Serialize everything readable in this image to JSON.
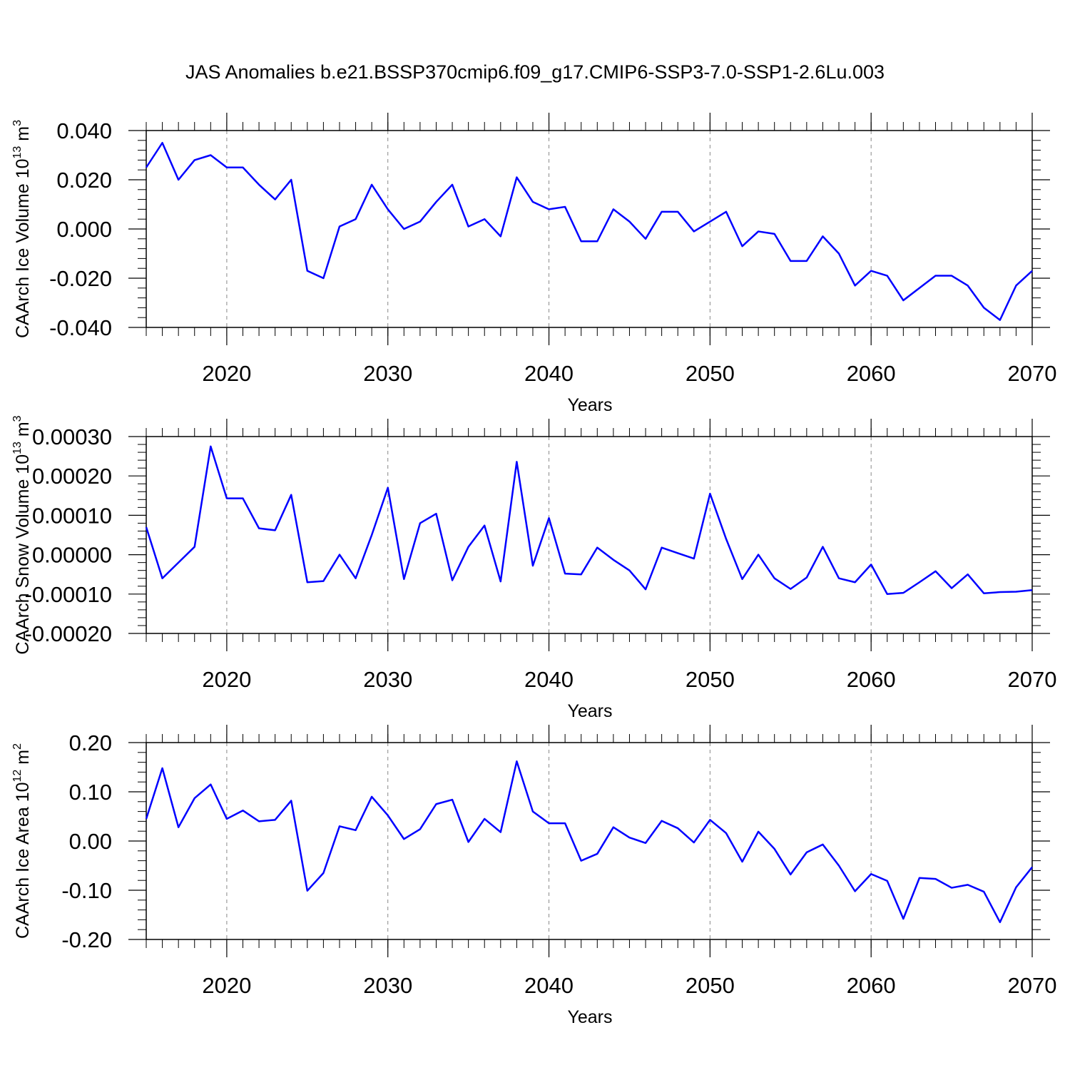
{
  "title": "JAS Anomalies b.e21.BSSP370cmip6.f09_g17.CMIP6-SSP3-7.0-SSP1-2.6Lu.003",
  "chart_data": [
    {
      "type": "line",
      "ylabel": [
        "CAArch Ice Volume 10",
        "13",
        " m",
        "3"
      ],
      "xlabel": "Years",
      "x": [
        2015,
        2016,
        2017,
        2018,
        2019,
        2020,
        2021,
        2022,
        2023,
        2024,
        2025,
        2026,
        2027,
        2028,
        2029,
        2030,
        2031,
        2032,
        2033,
        2034,
        2035,
        2036,
        2037,
        2038,
        2039,
        2040,
        2041,
        2042,
        2043,
        2044,
        2045,
        2046,
        2047,
        2048,
        2049,
        2050,
        2051,
        2052,
        2053,
        2054,
        2055,
        2056,
        2057,
        2058,
        2059,
        2060,
        2061,
        2062,
        2063,
        2064,
        2065,
        2066,
        2067,
        2068,
        2069,
        2070
      ],
      "series": [
        {
          "color": "#0000ff",
          "values": [
            0.025,
            0.035,
            0.02,
            0.028,
            0.03,
            0.025,
            0.025,
            0.018,
            0.012,
            0.02,
            -0.017,
            -0.02,
            0.001,
            0.004,
            0.018,
            0.008,
            0.0,
            0.003,
            0.011,
            0.018,
            0.001,
            0.004,
            -0.003,
            0.021,
            0.011,
            0.008,
            0.009,
            -0.005,
            -0.005,
            0.008,
            0.003,
            -0.004,
            0.007,
            0.007,
            -0.001,
            0.003,
            0.007,
            -0.007,
            -0.001,
            -0.002,
            -0.013,
            -0.013,
            -0.003,
            -0.01,
            -0.023,
            -0.017,
            -0.019,
            -0.029,
            -0.024,
            -0.019,
            -0.019,
            -0.023,
            -0.032,
            -0.037,
            -0.023,
            -0.017
          ]
        }
      ],
      "xlim": [
        2015,
        2070
      ],
      "xticks": [
        2020,
        2030,
        2040,
        2050,
        2060,
        2070
      ],
      "ylim": [
        -0.04,
        0.04
      ],
      "yticks": [
        {
          "value": -0.04,
          "label": "-0.040"
        },
        {
          "value": -0.02,
          "label": "-0.020"
        },
        {
          "value": 0,
          "label": "0.000"
        },
        {
          "value": 0.02,
          "label": "0.020"
        },
        {
          "value": 0.04,
          "label": "0.040"
        }
      ],
      "grid": true
    },
    {
      "type": "line",
      "ylabel": [
        "CAArch Snow Volume 10",
        "13",
        " m",
        "3"
      ],
      "xlabel": "Years",
      "x": [
        2015,
        2016,
        2017,
        2018,
        2019,
        2020,
        2021,
        2022,
        2023,
        2024,
        2025,
        2026,
        2027,
        2028,
        2029,
        2030,
        2031,
        2032,
        2033,
        2034,
        2035,
        2036,
        2037,
        2038,
        2039,
        2040,
        2041,
        2042,
        2043,
        2044,
        2045,
        2046,
        2047,
        2048,
        2049,
        2050,
        2051,
        2052,
        2053,
        2054,
        2055,
        2056,
        2057,
        2058,
        2059,
        2060,
        2061,
        2062,
        2063,
        2064,
        2065,
        2066,
        2067,
        2068,
        2069,
        2070
      ],
      "series": [
        {
          "color": "#0000ff",
          "values": [
            7e-05,
            -6e-05,
            -2e-05,
            2e-05,
            0.000275,
            0.000143,
            0.000143,
            6.7e-05,
            6.2e-05,
            0.000152,
            -7e-05,
            -6.7e-05,
            0.0,
            -6e-05,
            5e-05,
            0.00017,
            -6.2e-05,
            8e-05,
            0.000104,
            -6.5e-05,
            2e-05,
            7.4e-05,
            -6.8e-05,
            0.000236,
            -2.8e-05,
            9.3e-05,
            -4.8e-05,
            -5e-05,
            1.8e-05,
            -1.3e-05,
            -4e-05,
            -8.8e-05,
            1.8e-05,
            4e-06,
            -1e-05,
            0.000155,
            4e-05,
            -6.2e-05,
            0.0,
            -6e-05,
            -8.7e-05,
            -5.8e-05,
            2e-05,
            -6e-05,
            -7e-05,
            -2.5e-05,
            -0.0001,
            -9.7e-05,
            -7e-05,
            -4.2e-05,
            -8.5e-05,
            -5e-05,
            -9.8e-05,
            -9.5e-05,
            -9.4e-05,
            -9e-05
          ]
        }
      ],
      "xlim": [
        2015,
        2070
      ],
      "xticks": [
        2020,
        2030,
        2040,
        2050,
        2060,
        2070
      ],
      "ylim": [
        -0.0002,
        0.0003
      ],
      "yticks": [
        {
          "value": -0.0002,
          "label": "-0.00020"
        },
        {
          "value": -0.0001,
          "label": "-0.00010"
        },
        {
          "value": 0,
          "label": "0.00000"
        },
        {
          "value": 0.0001,
          "label": "0.00010"
        },
        {
          "value": 0.0002,
          "label": "0.00020"
        },
        {
          "value": 0.0003,
          "label": "0.00030"
        }
      ],
      "grid": true
    },
    {
      "type": "line",
      "ylabel": [
        "CAArch Ice Area 10",
        "12",
        " m",
        "2"
      ],
      "xlabel": "Years",
      "x": [
        2015,
        2016,
        2017,
        2018,
        2019,
        2020,
        2021,
        2022,
        2023,
        2024,
        2025,
        2026,
        2027,
        2028,
        2029,
        2030,
        2031,
        2032,
        2033,
        2034,
        2035,
        2036,
        2037,
        2038,
        2039,
        2040,
        2041,
        2042,
        2043,
        2044,
        2045,
        2046,
        2047,
        2048,
        2049,
        2050,
        2051,
        2052,
        2053,
        2054,
        2055,
        2056,
        2057,
        2058,
        2059,
        2060,
        2061,
        2062,
        2063,
        2064,
        2065,
        2066,
        2067,
        2068,
        2069,
        2070
      ],
      "series": [
        {
          "color": "#0000ff",
          "values": [
            0.045,
            0.148,
            0.028,
            0.087,
            0.115,
            0.045,
            0.062,
            0.04,
            0.043,
            0.082,
            -0.101,
            -0.065,
            0.03,
            0.022,
            0.09,
            0.052,
            0.004,
            0.024,
            0.075,
            0.084,
            -0.002,
            0.045,
            0.018,
            0.162,
            0.06,
            0.036,
            0.036,
            -0.04,
            -0.026,
            0.028,
            0.007,
            -0.004,
            0.041,
            0.026,
            -0.003,
            0.043,
            0.016,
            -0.042,
            0.019,
            -0.016,
            -0.068,
            -0.023,
            -0.007,
            -0.05,
            -0.102,
            -0.067,
            -0.081,
            -0.158,
            -0.075,
            -0.077,
            -0.095,
            -0.089,
            -0.103,
            -0.165,
            -0.094,
            -0.053
          ]
        }
      ],
      "xlim": [
        2015,
        2070
      ],
      "xticks": [
        2020,
        2030,
        2040,
        2050,
        2060,
        2070
      ],
      "ylim": [
        -0.2,
        0.2
      ],
      "yticks": [
        {
          "value": -0.2,
          "label": "-0.20"
        },
        {
          "value": -0.1,
          "label": "-0.10"
        },
        {
          "value": 0,
          "label": "0.00"
        },
        {
          "value": 0.1,
          "label": "0.10"
        },
        {
          "value": 0.2,
          "label": "0.20"
        }
      ],
      "grid": true
    }
  ]
}
